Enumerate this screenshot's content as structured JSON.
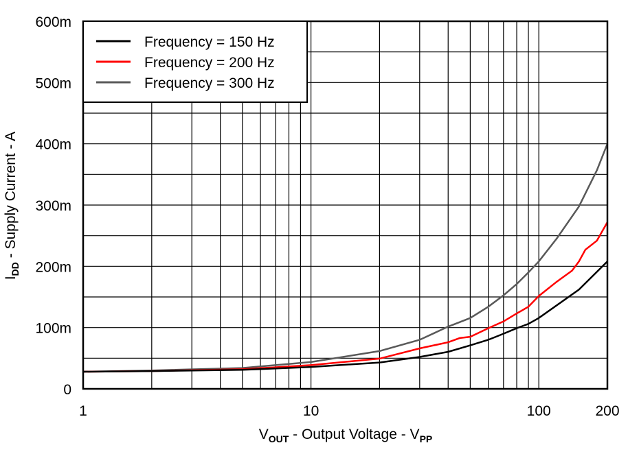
{
  "chart_data": {
    "type": "line",
    "title": "",
    "xlabel": {
      "main": "V",
      "sub": "OUT",
      "rest": " - Output Voltage - V",
      "sub2": "PP"
    },
    "ylabel": {
      "main": "I",
      "sub": "DD",
      "rest": " - Supply Current - A"
    },
    "x_scale": "log",
    "xlim": [
      1,
      200
    ],
    "ylim": [
      0,
      0.6
    ],
    "x_ticks": [
      {
        "v": 1,
        "label": "1"
      },
      {
        "v": 10,
        "label": "10"
      },
      {
        "v": 100,
        "label": "100"
      },
      {
        "v": 200,
        "label": "200"
      }
    ],
    "y_ticks": [
      {
        "v": 0,
        "label": "0"
      },
      {
        "v": 0.1,
        "label": "100m"
      },
      {
        "v": 0.2,
        "label": "200m"
      },
      {
        "v": 0.3,
        "label": "300m"
      },
      {
        "v": 0.4,
        "label": "400m"
      },
      {
        "v": 0.5,
        "label": "500m"
      },
      {
        "v": 0.6,
        "label": "600m"
      }
    ],
    "grid": true,
    "legend_position": "top-left",
    "series": [
      {
        "name": "Frequency = 150 Hz",
        "color": "#000000",
        "x": [
          1,
          2,
          5,
          10,
          20,
          30,
          40,
          50,
          60,
          70,
          80,
          90,
          100,
          150,
          200
        ],
        "y": [
          0.028,
          0.029,
          0.031,
          0.0357,
          0.043,
          0.052,
          0.0605,
          0.071,
          0.08,
          0.09,
          0.099,
          0.106,
          0.1156,
          0.162,
          0.208
        ]
      },
      {
        "name": "Frequency = 200 Hz",
        "color": "#ff0000",
        "x": [
          1,
          2,
          5,
          10,
          20,
          30,
          40,
          45,
          50,
          60,
          70,
          80,
          90,
          100,
          120,
          140,
          150,
          160,
          180,
          200
        ],
        "y": [
          0.028,
          0.029,
          0.032,
          0.0387,
          0.0494,
          0.066,
          0.076,
          0.083,
          0.085,
          0.099,
          0.11,
          0.123,
          0.134,
          0.1516,
          0.175,
          0.193,
          0.208,
          0.227,
          0.242,
          0.272
        ]
      },
      {
        "name": "Frequency = 300 Hz",
        "color": "#595959",
        "x": [
          1,
          2,
          5,
          10,
          20,
          30,
          40,
          50,
          60,
          70,
          80,
          90,
          100,
          120,
          150,
          180,
          200
        ],
        "y": [
          0.028,
          0.03,
          0.034,
          0.0438,
          0.0617,
          0.08,
          0.1015,
          0.1156,
          0.134,
          0.1527,
          0.171,
          0.19,
          0.208,
          0.2456,
          0.2977,
          0.357,
          0.4
        ]
      }
    ]
  }
}
